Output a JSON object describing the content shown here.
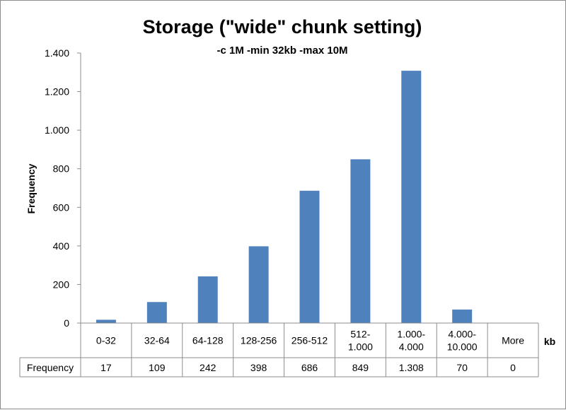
{
  "chart_data": {
    "type": "bar",
    "title": "Storage (\"wide\" chunk setting)",
    "subtitle": "-c 1M -min 32kb -max 10M",
    "ylabel": "Frequency",
    "xlabel": "kb",
    "categories": [
      "0-32",
      "32-64",
      "64-128",
      "128-256",
      "256-512",
      "512-1.000",
      "1.000-4.000",
      "4.000-10.000",
      "More"
    ],
    "category_lines": [
      [
        "0-32"
      ],
      [
        "32-64"
      ],
      [
        "64-128"
      ],
      [
        "128-256"
      ],
      [
        "256-512"
      ],
      [
        "512-",
        "1.000"
      ],
      [
        "1.000-",
        "4.000"
      ],
      [
        "4.000-",
        "10.000"
      ],
      [
        "More"
      ]
    ],
    "series": [
      {
        "name": "Frequency",
        "values": [
          17,
          109,
          242,
          398,
          686,
          849,
          1308,
          70,
          0
        ],
        "value_labels": [
          "17",
          "109",
          "242",
          "398",
          "686",
          "849",
          "1.308",
          "70",
          "0"
        ],
        "color": "#4f81bd"
      }
    ],
    "ylim": [
      0,
      1400
    ],
    "yticks": [
      0,
      200,
      400,
      600,
      800,
      1000,
      1200,
      1400
    ],
    "ytick_labels": [
      "0",
      "200",
      "400",
      "600",
      "800",
      "1.000",
      "1.200",
      "1.400"
    ],
    "grid": false,
    "legend": "data-table",
    "table_row_label": "Frequency"
  }
}
